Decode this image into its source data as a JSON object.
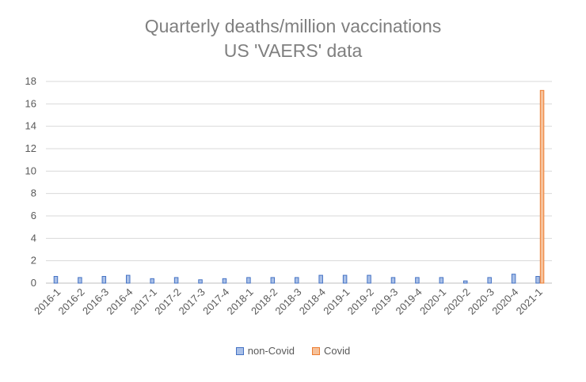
{
  "chart_data": {
    "type": "bar",
    "title": "Quarterly deaths/million vaccinations",
    "subtitle": "US 'VAERS' data",
    "xlabel": "",
    "ylabel": "",
    "ylim": [
      0,
      18
    ],
    "yticks": [
      0,
      2,
      4,
      6,
      8,
      10,
      12,
      14,
      16,
      18
    ],
    "grid": true,
    "legend_position": "bottom",
    "categories": [
      "2016-1",
      "2016-2",
      "2016-3",
      "2016-4",
      "2017-1",
      "2017-2",
      "2017-3",
      "2017-4",
      "2018-1",
      "2018-2",
      "2018-3",
      "2018-4",
      "2019-1",
      "2019-2",
      "2019-3",
      "2019-4",
      "2020-1",
      "2020-2",
      "2020-3",
      "2020-4",
      "2021-1"
    ],
    "series": [
      {
        "name": "non-Covid",
        "color": "#4472c4",
        "values": [
          0.6,
          0.5,
          0.6,
          0.7,
          0.4,
          0.5,
          0.3,
          0.4,
          0.5,
          0.5,
          0.5,
          0.7,
          0.7,
          0.7,
          0.5,
          0.5,
          0.5,
          0.2,
          0.5,
          0.8,
          0.6
        ]
      },
      {
        "name": "Covid",
        "color": "#ed7d31",
        "values": [
          null,
          null,
          null,
          null,
          null,
          null,
          null,
          null,
          null,
          null,
          null,
          null,
          null,
          null,
          null,
          null,
          null,
          null,
          null,
          null,
          17.2
        ]
      }
    ]
  }
}
